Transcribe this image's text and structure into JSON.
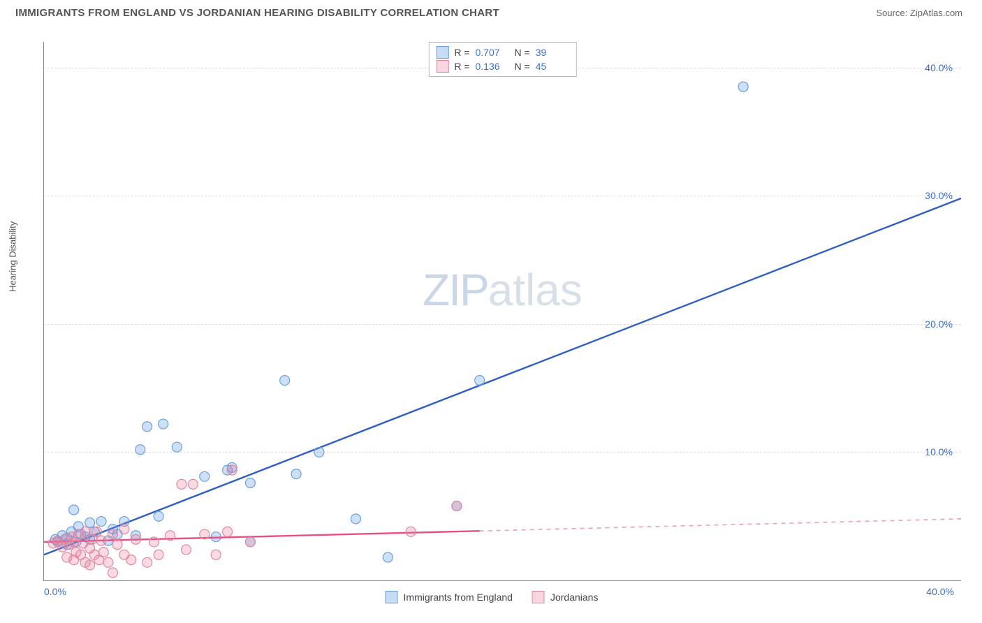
{
  "header": {
    "title": "IMMIGRANTS FROM ENGLAND VS JORDANIAN HEARING DISABILITY CORRELATION CHART",
    "source": "Source: ZipAtlas.com"
  },
  "watermark": {
    "zip": "ZIP",
    "atlas": "atlas"
  },
  "chart": {
    "type": "scatter",
    "y_axis_label": "Hearing Disability",
    "xlim": [
      0,
      40
    ],
    "ylim": [
      0,
      42
    ],
    "x_tick_left": "0.0%",
    "x_tick_right": "40.0%",
    "y_ticks": [
      {
        "value": 10,
        "label": "10.0%"
      },
      {
        "value": 20,
        "label": "20.0%"
      },
      {
        "value": 30,
        "label": "30.0%"
      },
      {
        "value": 40,
        "label": "40.0%"
      }
    ],
    "grid_color": "#dddddd",
    "background_color": "#ffffff",
    "series": [
      {
        "name": "Immigrants from England",
        "color_fill": "rgba(93,151,224,0.30)",
        "color_stroke": "#6a9fe0",
        "trend_color": "#2f5fc4",
        "trend_dash_after_x": 40,
        "trend": {
          "x1": 0,
          "y1": 2.0,
          "x2": 40,
          "y2": 29.8
        },
        "points": [
          [
            0.5,
            3.2
          ],
          [
            0.6,
            3.0
          ],
          [
            0.8,
            3.5
          ],
          [
            1.0,
            3.3
          ],
          [
            1.0,
            2.8
          ],
          [
            1.2,
            3.8
          ],
          [
            1.3,
            5.5
          ],
          [
            1.4,
            3.0
          ],
          [
            1.5,
            4.2
          ],
          [
            1.6,
            3.6
          ],
          [
            1.8,
            3.4
          ],
          [
            2.0,
            4.5
          ],
          [
            2.0,
            3.2
          ],
          [
            2.2,
            3.8
          ],
          [
            2.5,
            4.6
          ],
          [
            2.8,
            3.1
          ],
          [
            3.0,
            4.0
          ],
          [
            3.2,
            3.6
          ],
          [
            3.5,
            4.6
          ],
          [
            4.0,
            3.5
          ],
          [
            4.2,
            10.2
          ],
          [
            4.5,
            12.0
          ],
          [
            5.0,
            5.0
          ],
          [
            5.2,
            12.2
          ],
          [
            5.8,
            10.4
          ],
          [
            7.0,
            8.1
          ],
          [
            7.5,
            3.4
          ],
          [
            8.0,
            8.6
          ],
          [
            8.2,
            8.8
          ],
          [
            9.0,
            7.6
          ],
          [
            9.0,
            3.0
          ],
          [
            10.5,
            15.6
          ],
          [
            11.0,
            8.3
          ],
          [
            12.0,
            10.0
          ],
          [
            13.6,
            4.8
          ],
          [
            15.0,
            1.8
          ],
          [
            18.0,
            5.8
          ],
          [
            19.0,
            15.6
          ],
          [
            30.5,
            38.5
          ]
        ]
      },
      {
        "name": "Jordanians",
        "color_fill": "rgba(235,120,150,0.28)",
        "color_stroke": "#e089a0",
        "trend_color": "#e64f86",
        "trend_dash_after_x": 19,
        "trend": {
          "x1": 0,
          "y1": 3.0,
          "x2": 40,
          "y2": 4.8
        },
        "points": [
          [
            0.4,
            2.9
          ],
          [
            0.6,
            3.1
          ],
          [
            0.8,
            2.6
          ],
          [
            0.9,
            3.2
          ],
          [
            1.0,
            1.8
          ],
          [
            1.1,
            2.8
          ],
          [
            1.2,
            3.4
          ],
          [
            1.3,
            1.6
          ],
          [
            1.3,
            3.0
          ],
          [
            1.4,
            2.2
          ],
          [
            1.5,
            3.6
          ],
          [
            1.6,
            2.0
          ],
          [
            1.7,
            2.9
          ],
          [
            1.8,
            1.4
          ],
          [
            1.8,
            3.8
          ],
          [
            2.0,
            2.5
          ],
          [
            2.0,
            1.2
          ],
          [
            2.1,
            3.2
          ],
          [
            2.2,
            2.0
          ],
          [
            2.3,
            3.8
          ],
          [
            2.4,
            1.6
          ],
          [
            2.5,
            3.1
          ],
          [
            2.6,
            2.2
          ],
          [
            2.8,
            1.4
          ],
          [
            3.0,
            3.6
          ],
          [
            3.0,
            0.6
          ],
          [
            3.2,
            2.8
          ],
          [
            3.5,
            2.0
          ],
          [
            3.5,
            4.0
          ],
          [
            3.8,
            1.6
          ],
          [
            4.0,
            3.2
          ],
          [
            4.5,
            1.4
          ],
          [
            4.8,
            3.0
          ],
          [
            5.0,
            2.0
          ],
          [
            5.5,
            3.5
          ],
          [
            6.0,
            7.5
          ],
          [
            6.2,
            2.4
          ],
          [
            6.5,
            7.5
          ],
          [
            7.0,
            3.6
          ],
          [
            7.5,
            2.0
          ],
          [
            8.0,
            3.8
          ],
          [
            8.2,
            8.6
          ],
          [
            9.0,
            3.0
          ],
          [
            16.0,
            3.8
          ],
          [
            18.0,
            5.8
          ]
        ]
      }
    ],
    "marker_radius": 7,
    "marker_stroke_width": 1.2,
    "trend_line_width": 2.4
  },
  "stats_box": {
    "rows": [
      {
        "swatch": "blue",
        "r_label": "R =",
        "r_value": "0.707",
        "n_label": "N =",
        "n_value": "39"
      },
      {
        "swatch": "pink",
        "r_label": "R =",
        "r_value": "0.136",
        "n_label": "N =",
        "n_value": "45"
      }
    ]
  },
  "bottom_legend": {
    "items": [
      {
        "swatch": "blue",
        "label": "Immigrants from England"
      },
      {
        "swatch": "pink",
        "label": "Jordanians"
      }
    ]
  }
}
